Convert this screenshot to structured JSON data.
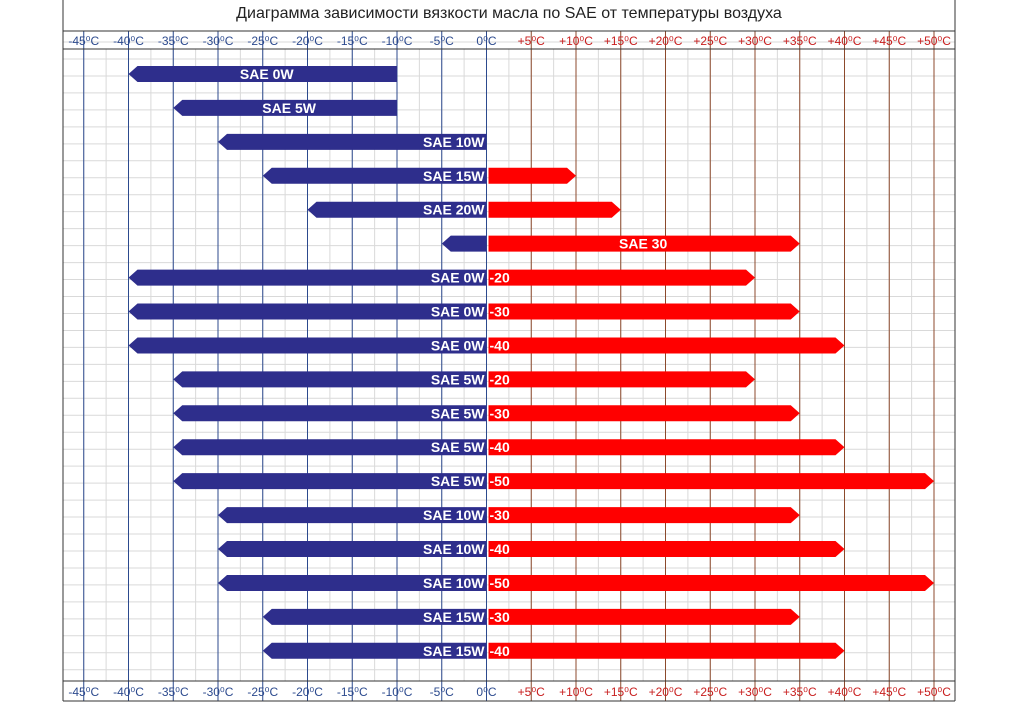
{
  "chart_data": {
    "type": "bar",
    "title": "Диаграмма зависимости вязкости масла по SAE от температуры воздуха",
    "xlabel": "",
    "ylabel": "",
    "xlim": [
      -50,
      50
    ],
    "grid": true,
    "colors": {
      "cold": "#2e2e8c",
      "hot": "#ff0000",
      "tick_cold": "#2c4a8e",
      "tick_hot": "#c81e1e",
      "line_cold": "#2c4a8e",
      "line_hot": "#8c4a2c",
      "grid_minor": "#d9d9d9"
    },
    "ticks": [
      {
        "value": -45,
        "label": "-45⁰C"
      },
      {
        "value": -40,
        "label": "-40⁰C"
      },
      {
        "value": -35,
        "label": "-35⁰C"
      },
      {
        "value": -30,
        "label": "-30⁰C"
      },
      {
        "value": -25,
        "label": "-25⁰C"
      },
      {
        "value": -20,
        "label": "-20⁰C"
      },
      {
        "value": -15,
        "label": "-15⁰C"
      },
      {
        "value": -10,
        "label": "-10⁰C"
      },
      {
        "value": -5,
        "label": "-5⁰C"
      },
      {
        "value": 0,
        "label": "0⁰C"
      },
      {
        "value": 5,
        "label": "+5⁰C"
      },
      {
        "value": 10,
        "label": "+10⁰C"
      },
      {
        "value": 15,
        "label": "+15⁰C"
      },
      {
        "value": 20,
        "label": "+20⁰C"
      },
      {
        "value": 25,
        "label": "+25⁰C"
      },
      {
        "value": 30,
        "label": "+30⁰C"
      },
      {
        "value": 35,
        "label": "+35⁰C"
      },
      {
        "value": 40,
        "label": "+40⁰C"
      },
      {
        "value": 45,
        "label": "+45⁰C"
      },
      {
        "value": 50,
        "label": "+50⁰C"
      }
    ],
    "series": [
      {
        "name": "SAE 0W",
        "min": -40,
        "max": -10,
        "cold_label": "SAE 0W",
        "hot_label": ""
      },
      {
        "name": "SAE 5W",
        "min": -35,
        "max": -10,
        "cold_label": "SAE 5W",
        "hot_label": ""
      },
      {
        "name": "SAE 10W",
        "min": -30,
        "max": 0,
        "cold_label": "SAE 10W",
        "hot_label": ""
      },
      {
        "name": "SAE 15W",
        "min": -25,
        "max": 10,
        "cold_label": "SAE 15W",
        "hot_label": ""
      },
      {
        "name": "SAE 20W",
        "min": -20,
        "max": 15,
        "cold_label": "SAE 20W",
        "hot_label": ""
      },
      {
        "name": "SAE 30",
        "min": -5,
        "max": 35,
        "cold_label": "",
        "hot_label": "SAE 30"
      },
      {
        "name": "SAE 0W-20",
        "min": -40,
        "max": 30,
        "cold_label": "SAE 0W",
        "hot_label": "-20"
      },
      {
        "name": "SAE 0W-30",
        "min": -40,
        "max": 35,
        "cold_label": "SAE 0W",
        "hot_label": "-30"
      },
      {
        "name": "SAE 0W-40",
        "min": -40,
        "max": 40,
        "cold_label": "SAE 0W",
        "hot_label": "-40"
      },
      {
        "name": "SAE 5W-20",
        "min": -35,
        "max": 30,
        "cold_label": "SAE 5W",
        "hot_label": "-20"
      },
      {
        "name": "SAE 5W-30",
        "min": -35,
        "max": 35,
        "cold_label": "SAE 5W",
        "hot_label": "-30"
      },
      {
        "name": "SAE 5W-40",
        "min": -35,
        "max": 40,
        "cold_label": "SAE 5W",
        "hot_label": "-40"
      },
      {
        "name": "SAE 5W-50",
        "min": -35,
        "max": 50,
        "cold_label": "SAE 5W",
        "hot_label": "-50"
      },
      {
        "name": "SAE 10W-30",
        "min": -30,
        "max": 35,
        "cold_label": "SAE 10W",
        "hot_label": "-30"
      },
      {
        "name": "SAE 10W-40",
        "min": -30,
        "max": 40,
        "cold_label": "SAE 10W",
        "hot_label": "-40"
      },
      {
        "name": "SAE 10W-50",
        "min": -30,
        "max": 50,
        "cold_label": "SAE 10W",
        "hot_label": "-50"
      },
      {
        "name": "SAE 15W-30",
        "min": -25,
        "max": 35,
        "cold_label": "SAE 15W",
        "hot_label": "-30"
      },
      {
        "name": "SAE 15W-40",
        "min": -25,
        "max": 40,
        "cold_label": "SAE 15W",
        "hot_label": "-40"
      }
    ]
  }
}
